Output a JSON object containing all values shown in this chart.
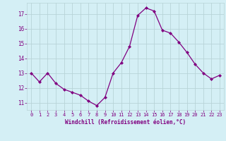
{
  "x": [
    0,
    1,
    2,
    3,
    4,
    5,
    6,
    7,
    8,
    9,
    10,
    11,
    12,
    13,
    14,
    15,
    16,
    17,
    18,
    19,
    20,
    21,
    22,
    23
  ],
  "y": [
    13.0,
    12.4,
    13.0,
    12.3,
    11.9,
    11.7,
    11.5,
    11.1,
    10.8,
    11.35,
    13.0,
    13.7,
    14.8,
    16.9,
    17.4,
    17.2,
    15.9,
    15.7,
    15.1,
    14.4,
    13.6,
    13.0,
    12.6,
    12.85
  ],
  "xlabel": "Windchill (Refroidissement éolien,°C)",
  "ylim": [
    10.5,
    17.75
  ],
  "xlim": [
    -0.5,
    23.5
  ],
  "yticks": [
    11,
    12,
    13,
    14,
    15,
    16,
    17
  ],
  "xticks": [
    0,
    1,
    2,
    3,
    4,
    5,
    6,
    7,
    8,
    9,
    10,
    11,
    12,
    13,
    14,
    15,
    16,
    17,
    18,
    19,
    20,
    21,
    22,
    23
  ],
  "line_color": "#800080",
  "marker_color": "#800080",
  "bg_color": "#d4eff5",
  "grid_color": "#b8d4d8",
  "tick_color": "#800080",
  "label_color": "#800080",
  "marker": "D",
  "markersize": 2.0,
  "linewidth": 0.9
}
